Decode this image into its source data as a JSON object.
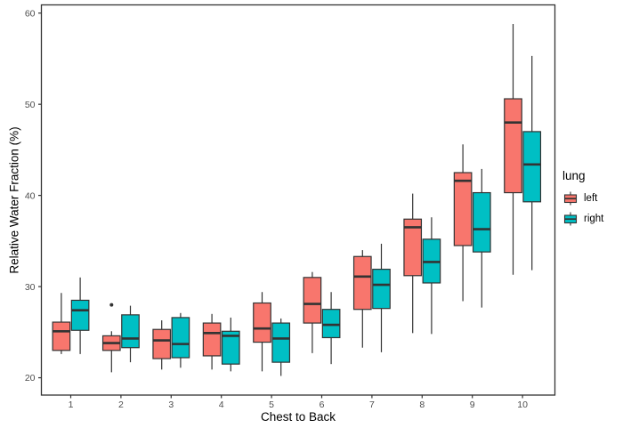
{
  "chart_data": {
    "type": "boxplot",
    "title": "",
    "xlabel": "Chest to Back",
    "ylabel": "Relative Water Fraction (%)",
    "x_ticks": [
      "1",
      "2",
      "3",
      "4",
      "5",
      "6",
      "7",
      "8",
      "9",
      "10"
    ],
    "y_ticks": [
      20,
      30,
      40,
      50,
      60
    ],
    "ylim": [
      18.1,
      60.9
    ],
    "grid": false,
    "panel_border": true,
    "legend": {
      "title": "lung",
      "position": "right",
      "entries": [
        {
          "label": "left",
          "color": "#F8766D"
        },
        {
          "label": "right",
          "color": "#00BFC4"
        }
      ]
    },
    "colors": {
      "left_fill": "#F8766D",
      "right_fill": "#00BFC4",
      "box_stroke": "#333333",
      "tick_label_color": "#4D4D4D",
      "outlier_color": "#333333"
    },
    "series": [
      {
        "name": "left",
        "color": "#F8766D",
        "boxes": [
          {
            "x": 1,
            "low": 22.6,
            "q1": 23.0,
            "median": 25.1,
            "q3": 26.1,
            "high": 29.3,
            "outliers": []
          },
          {
            "x": 2,
            "low": 20.6,
            "q1": 23.0,
            "median": 23.8,
            "q3": 24.6,
            "high": 25.1,
            "outliers": [
              28.0
            ]
          },
          {
            "x": 3,
            "low": 20.9,
            "q1": 22.1,
            "median": 24.1,
            "q3": 25.3,
            "high": 26.3,
            "outliers": []
          },
          {
            "x": 4,
            "low": 20.9,
            "q1": 22.4,
            "median": 24.9,
            "q3": 26.0,
            "high": 27.0,
            "outliers": []
          },
          {
            "x": 5,
            "low": 20.7,
            "q1": 23.9,
            "median": 25.4,
            "q3": 28.2,
            "high": 29.4,
            "outliers": []
          },
          {
            "x": 6,
            "low": 22.7,
            "q1": 26.0,
            "median": 28.1,
            "q3": 31.0,
            "high": 31.6,
            "outliers": []
          },
          {
            "x": 7,
            "low": 23.3,
            "q1": 27.5,
            "median": 31.1,
            "q3": 33.3,
            "high": 34.0,
            "outliers": []
          },
          {
            "x": 8,
            "low": 24.9,
            "q1": 31.2,
            "median": 36.5,
            "q3": 37.4,
            "high": 40.2,
            "outliers": []
          },
          {
            "x": 9,
            "low": 28.4,
            "q1": 34.5,
            "median": 41.6,
            "q3": 42.5,
            "high": 45.6,
            "outliers": []
          },
          {
            "x": 10,
            "low": 31.3,
            "q1": 40.3,
            "median": 48.0,
            "q3": 50.6,
            "high": 58.8,
            "outliers": []
          }
        ]
      },
      {
        "name": "right",
        "color": "#00BFC4",
        "boxes": [
          {
            "x": 1,
            "low": 22.6,
            "q1": 25.2,
            "median": 27.4,
            "q3": 28.5,
            "high": 31.0,
            "outliers": []
          },
          {
            "x": 2,
            "low": 21.7,
            "q1": 23.3,
            "median": 24.3,
            "q3": 26.9,
            "high": 27.9,
            "outliers": []
          },
          {
            "x": 3,
            "low": 21.1,
            "q1": 22.2,
            "median": 23.7,
            "q3": 26.6,
            "high": 27.1,
            "outliers": []
          },
          {
            "x": 4,
            "low": 20.7,
            "q1": 21.5,
            "median": 24.6,
            "q3": 25.1,
            "high": 26.6,
            "outliers": []
          },
          {
            "x": 5,
            "low": 20.2,
            "q1": 21.7,
            "median": 24.3,
            "q3": 26.0,
            "high": 26.5,
            "outliers": []
          },
          {
            "x": 6,
            "low": 21.5,
            "q1": 24.4,
            "median": 25.8,
            "q3": 27.5,
            "high": 29.4,
            "outliers": []
          },
          {
            "x": 7,
            "low": 22.8,
            "q1": 27.6,
            "median": 30.2,
            "q3": 31.9,
            "high": 34.7,
            "outliers": []
          },
          {
            "x": 8,
            "low": 24.8,
            "q1": 30.4,
            "median": 32.7,
            "q3": 35.2,
            "high": 37.6,
            "outliers": []
          },
          {
            "x": 9,
            "low": 27.7,
            "q1": 33.8,
            "median": 36.3,
            "q3": 40.3,
            "high": 42.9,
            "outliers": []
          },
          {
            "x": 10,
            "low": 31.8,
            "q1": 39.3,
            "median": 43.4,
            "q3": 47.0,
            "high": 55.3,
            "outliers": []
          }
        ]
      }
    ]
  }
}
